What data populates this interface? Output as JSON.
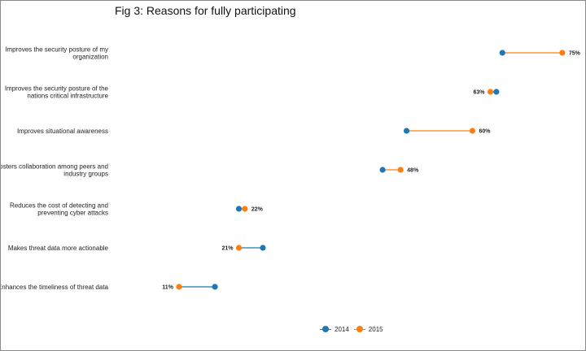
{
  "chart_data": {
    "type": "dumbbell",
    "title": "Fig 3: Reasons for fully participating",
    "xlabel": "",
    "ylabel": "",
    "xlim": [
      0,
      85
    ],
    "grid": false,
    "legend_position": "bottom",
    "series": [
      {
        "name": "2014",
        "color": "#1f77b4",
        "values": [
          65,
          64,
          49,
          45,
          21,
          25,
          17
        ]
      },
      {
        "name": "2015",
        "color": "#ff7f0e",
        "values": [
          75,
          63,
          60,
          48,
          22,
          21,
          11
        ]
      }
    ],
    "categories": [
      [
        "Improves the security posture of my",
        "organization"
      ],
      [
        "Improves the security posture of the",
        "nations critical infrastructure"
      ],
      [
        "Improves situational awareness"
      ],
      [
        "Fosters collaboration among peers and",
        "industry groups"
      ],
      [
        "Reduces the cost of detecting and",
        "preventing cyber attacks"
      ],
      [
        "Makes threat data more actionable"
      ],
      [
        "Enhances the timeliness of threat data"
      ]
    ],
    "value_labels": [
      "75%",
      "63%",
      "60%",
      "48%",
      "22%",
      "21%",
      "11%"
    ]
  }
}
